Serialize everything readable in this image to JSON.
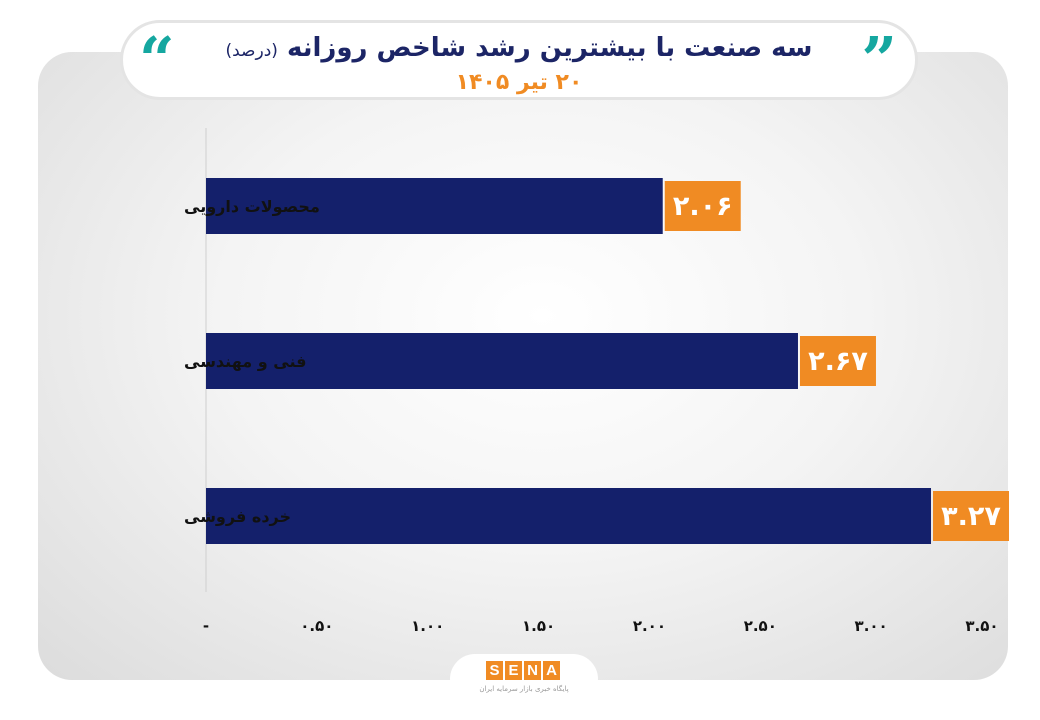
{
  "header": {
    "title": "سه صنعت با بیشترین رشد شاخص روزانه",
    "title_unit": "(درصد)",
    "subtitle": "۲۰ تیر ۱۴۰۵"
  },
  "logo": {
    "letters": [
      "S",
      "E",
      "N",
      "A"
    ],
    "tagline": "پایگاه خبری بازار سرمایه ایران"
  },
  "colors": {
    "bar": "#14206b",
    "label_bg": "#f08b23",
    "title": "#1c2566",
    "accent": "#15a7a0"
  },
  "chart_data": {
    "type": "bar",
    "orientation": "horizontal",
    "categories": [
      "محصولات دارویی",
      "فنی و مهندسی",
      "خرده فروشی"
    ],
    "values": [
      2.06,
      2.67,
      3.27
    ],
    "data_labels": [
      "۲.۰۶",
      "۲.۶۷",
      "۳.۲۷"
    ],
    "xlim": [
      0,
      3.5
    ],
    "x_ticks": [
      0,
      0.5,
      1,
      1.5,
      2,
      2.5,
      3,
      3.5
    ],
    "x_tick_labels": [
      "-",
      "۰.۵۰",
      "۱.۰۰",
      "۱.۵۰",
      "۲.۰۰",
      "۲.۵۰",
      "۳.۰۰",
      "۳.۵۰"
    ],
    "grid": false,
    "legend": "none"
  }
}
